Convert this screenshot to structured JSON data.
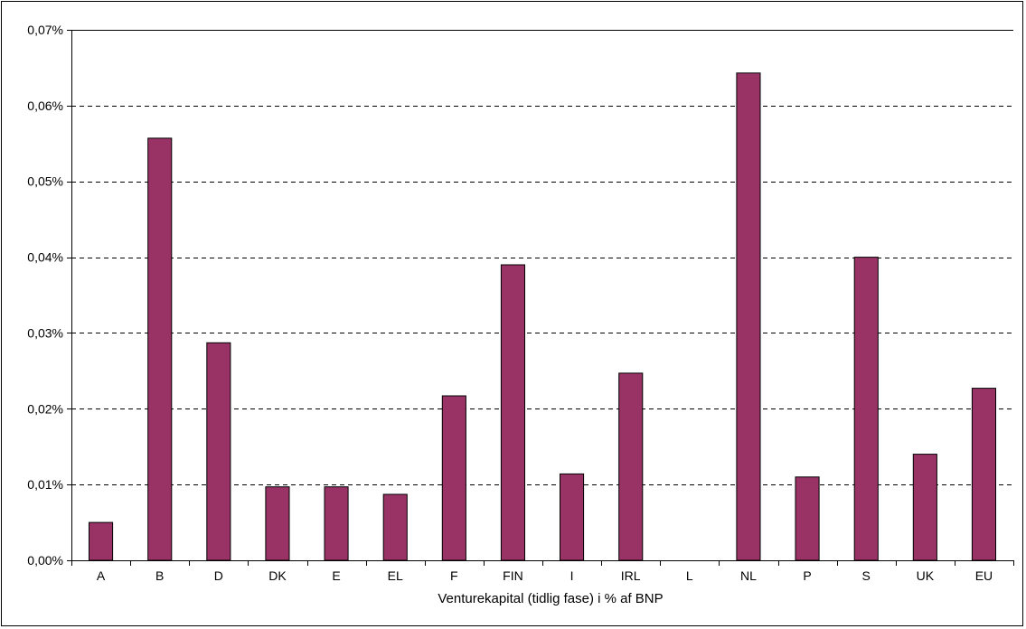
{
  "chart_data": {
    "type": "bar",
    "title": "",
    "xlabel": "Venturekapital (tidlig fase) i % af BNP",
    "ylabel": "",
    "ylim": [
      0,
      0.07
    ],
    "yticks": [
      0,
      0.01,
      0.02,
      0.03,
      0.04,
      0.05,
      0.06,
      0.07
    ],
    "ytick_labels": [
      "0,00%",
      "0,01%",
      "0,02%",
      "0,03%",
      "0,04%",
      "0,05%",
      "0,06%",
      "0,07%"
    ],
    "grid": "horizontal dashed",
    "legend": "none",
    "categories": [
      "A",
      "B",
      "D",
      "DK",
      "E",
      "EL",
      "F",
      "FIN",
      "I",
      "IRL",
      "L",
      "NL",
      "P",
      "S",
      "UK",
      "EU"
    ],
    "values": [
      0.005,
      0.0557,
      0.0287,
      0.0097,
      0.0097,
      0.0087,
      0.0217,
      0.039,
      0.0114,
      0.0247,
      0,
      0.0643,
      0.011,
      0.04,
      0.014,
      0.0227
    ],
    "bar_color": "#993366"
  }
}
